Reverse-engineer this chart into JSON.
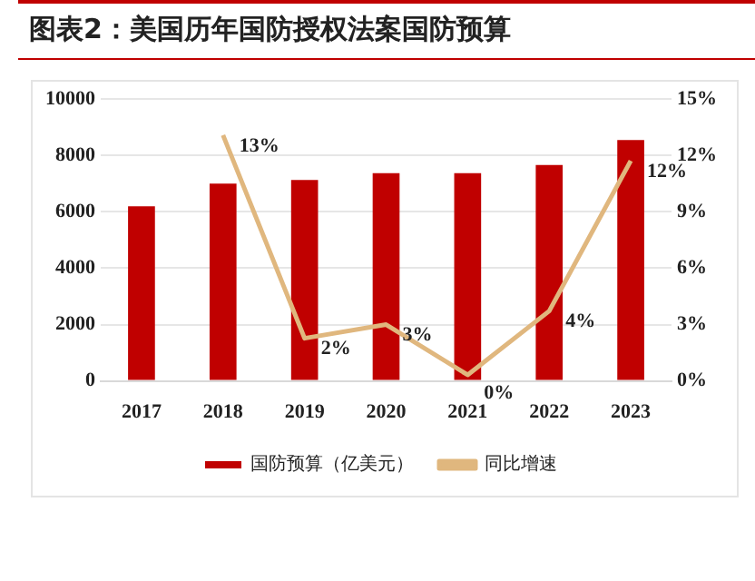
{
  "chart_data": {
    "type": "bar",
    "title": "图表2：美国历年国防授权法案国防预算",
    "categories": [
      "2017",
      "2018",
      "2019",
      "2020",
      "2021",
      "2022",
      "2023"
    ],
    "series": [
      {
        "name": "国防预算（亿美元）",
        "color": "#c00000",
        "values": [
          6200,
          7000,
          7130,
          7370,
          7370,
          7660,
          8550
        ]
      },
      {
        "name": "同比增速",
        "type": "line",
        "axis": "y2",
        "color": "#e0b77e",
        "marker": "none",
        "values": [
          null,
          13.08,
          2.27,
          3.0,
          0.32,
          3.72,
          11.72
        ],
        "value_labels": [
          null,
          "13%",
          "2%",
          "3%",
          "0%",
          "4%",
          "12%"
        ]
      }
    ],
    "ylim": [
      0,
      10000
    ],
    "yticks": [
      0,
      2000,
      4000,
      6000,
      8000,
      10000
    ],
    "y2lim": [
      0,
      15
    ],
    "y2ticks": [
      {
        "value": 0,
        "label": "0%"
      },
      {
        "value": 3,
        "label": "3%"
      },
      {
        "value": 6,
        "label": "6%"
      },
      {
        "value": 9,
        "label": "9%"
      },
      {
        "value": 12,
        "label": "12%"
      },
      {
        "value": 15,
        "label": "15%"
      }
    ],
    "grid": "y",
    "legend": "bottom"
  }
}
